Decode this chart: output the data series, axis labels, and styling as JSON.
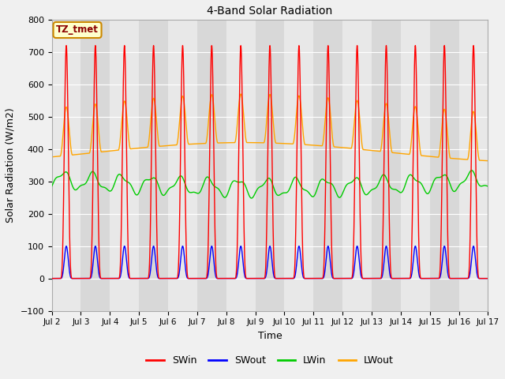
{
  "title": "4-Band Solar Radiation",
  "xlabel": "Time",
  "ylabel": "Solar Radiation (W/m2)",
  "ylim": [
    -100,
    800
  ],
  "annotation_text": "TZ_tmet",
  "x_tick_labels": [
    "Jul 2",
    "Jul 3",
    "Jul 4",
    "Jul 5",
    "Jul 6",
    "Jul 7",
    "Jul 8",
    "Jul 9",
    "Jul 10",
    "Jul 11",
    "Jul 12",
    "Jul 13",
    "Jul 14",
    "Jul 15",
    "Jul 16",
    "Jul 17"
  ],
  "colors": {
    "SWin": "#ff0000",
    "SWout": "#0000ff",
    "LWin": "#00cc00",
    "LWout": "#ffa500"
  },
  "background_color": "#f0f0f0",
  "plot_bg_color": "#d8d8d8",
  "alt_band_color": "#e8e8e8",
  "n_days": 15,
  "SWin_peak": 720,
  "SWout_peak": 100,
  "LWin_base": 300,
  "LWout_base": 400,
  "LWout_night": 400,
  "LWout_day_peak": 540,
  "points_per_day": 288
}
